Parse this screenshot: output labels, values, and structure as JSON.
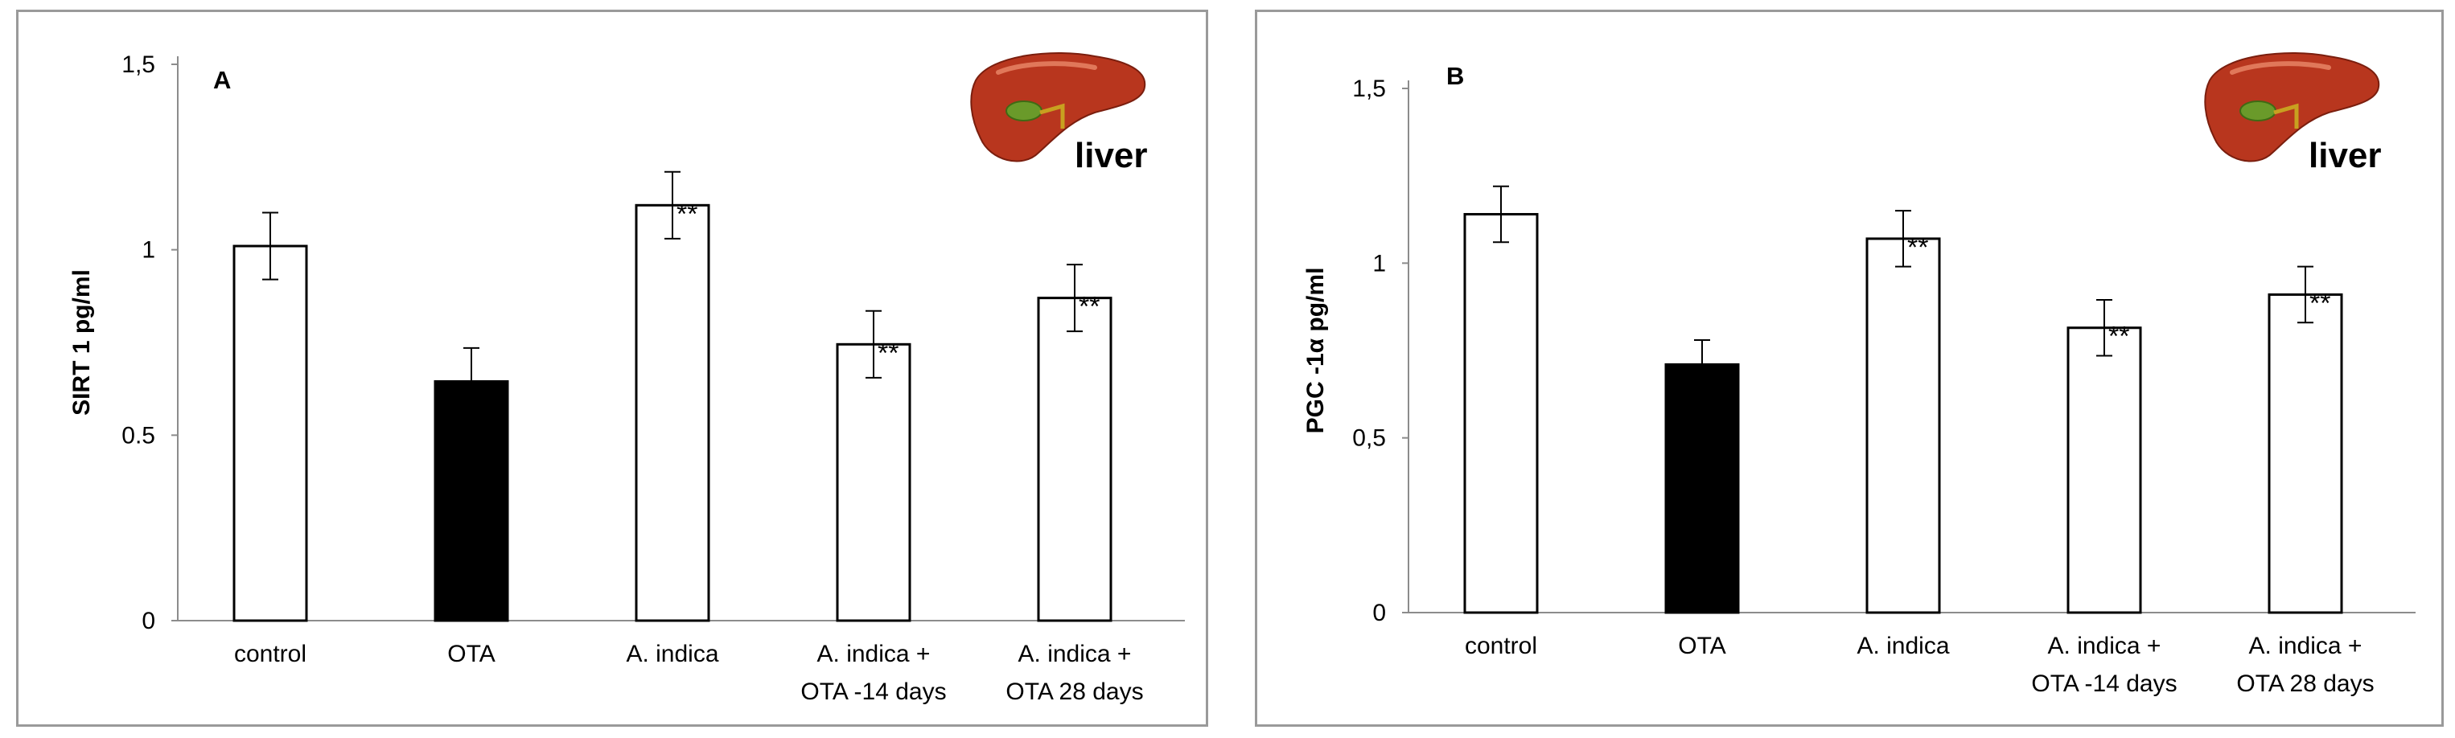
{
  "chart_data": [
    {
      "type": "bar",
      "panel_label": "A",
      "ylabel": "SIRT 1 pg/ml",
      "categories": [
        "control",
        "OTA",
        "A. indica",
        "A. indica + OTA -14 days",
        "A. indica + OTA 28 days"
      ],
      "category_lines": [
        [
          "control"
        ],
        [
          "OTA"
        ],
        [
          "A. indica"
        ],
        [
          "A. indica +",
          "OTA -14 days"
        ],
        [
          "A. indica +",
          "OTA 28 days"
        ]
      ],
      "values": [
        1.01,
        0.645,
        1.12,
        0.745,
        0.87
      ],
      "errors": [
        0.09,
        0.09,
        0.09,
        0.09,
        0.09
      ],
      "significance": [
        "",
        "*",
        "**",
        "**",
        "**"
      ],
      "bar_colors": [
        "#ffffff",
        "#000000",
        "#ffffff",
        "#ffffff",
        "#ffffff"
      ],
      "ylim": [
        0,
        1.5
      ],
      "yticks": [
        0,
        0.5,
        1,
        1.5
      ],
      "ytick_labels": [
        "0",
        "0.5",
        "1",
        "1,5"
      ],
      "icon": "liver-icon",
      "icon_label": "liver"
    },
    {
      "type": "bar",
      "panel_label": "B",
      "ylabel": "PGC -1α pg/ml",
      "categories": [
        "control",
        "OTA",
        "A. indica",
        "A. indica + OTA -14 days",
        "A. indica + OTA 28 days"
      ],
      "category_lines": [
        [
          "control"
        ],
        [
          "OTA"
        ],
        [
          "A. indica"
        ],
        [
          "A. indica +",
          "OTA -14 days"
        ],
        [
          "A. indica +",
          "OTA 28 days"
        ]
      ],
      "values": [
        1.14,
        0.71,
        1.07,
        0.815,
        0.91
      ],
      "errors": [
        0.08,
        0.07,
        0.08,
        0.08,
        0.08
      ],
      "significance": [
        "",
        "*",
        "**",
        "**",
        "**"
      ],
      "bar_colors": [
        "#ffffff",
        "#000000",
        "#ffffff",
        "#ffffff",
        "#ffffff"
      ],
      "ylim": [
        0,
        1.5
      ],
      "yticks": [
        0,
        0.5,
        1,
        1.5
      ],
      "ytick_labels": [
        "0",
        "0,5",
        "1",
        "1,5"
      ],
      "icon": "liver-icon",
      "icon_label": "liver"
    }
  ]
}
